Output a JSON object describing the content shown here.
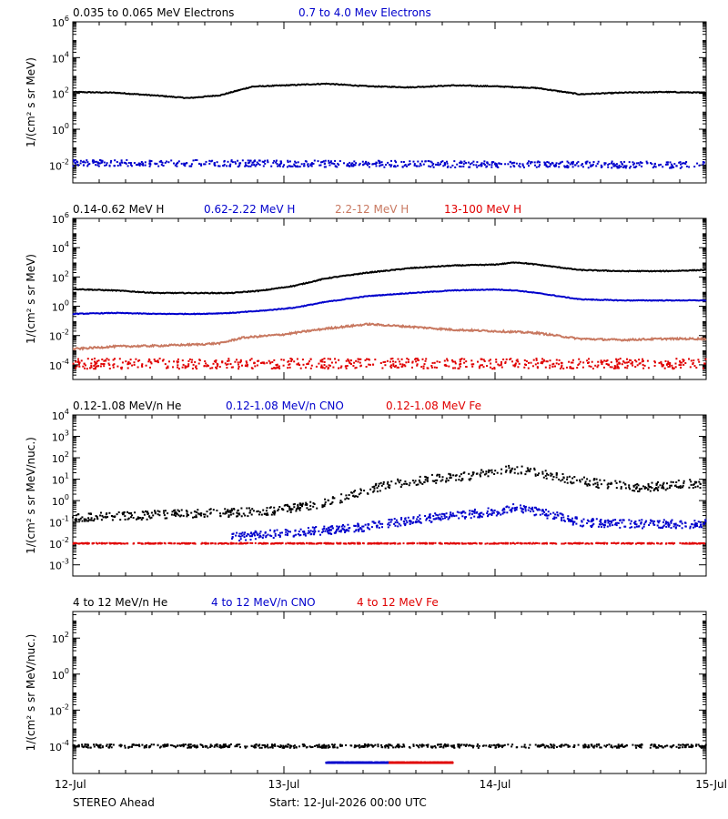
{
  "chart_data": [
    {
      "type": "scatter",
      "panel": 1,
      "ylabel": "1/(cm² s sr MeV)",
      "yscale": "log",
      "ylim": [
        0.001,
        1000000
      ],
      "yticks": [
        {
          "exp": "-2",
          "value": 0.01
        },
        {
          "exp": "0",
          "value": 1
        },
        {
          "exp": "2",
          "value": 100
        },
        {
          "exp": "4",
          "value": 10000
        },
        {
          "exp": "6",
          "value": 1000000
        }
      ],
      "series": [
        {
          "name": "0.035 to 0.065 MeV Electrons",
          "color": "#000000",
          "style": "line",
          "x": [
            0,
            0.2,
            0.4,
            0.55,
            0.7,
            0.85,
            1.0,
            1.2,
            1.4,
            1.6,
            1.8,
            2.0,
            2.2,
            2.4,
            2.6,
            2.8,
            3.0
          ],
          "y": [
            120,
            110,
            75,
            55,
            80,
            240,
            280,
            350,
            250,
            220,
            280,
            250,
            200,
            90,
            110,
            120,
            110
          ],
          "scatter": 0.05
        },
        {
          "name": "0.7 to 4.0 Mev Electrons",
          "color": "#0000cc",
          "style": "dots",
          "x": [
            0,
            3.0
          ],
          "y": [
            0.013,
            0.01
          ],
          "scatter": 0.18
        }
      ]
    },
    {
      "type": "scatter",
      "panel": 2,
      "ylabel": "1/(cm² s sr MeV)",
      "yscale": "log",
      "ylim": [
        1e-05,
        1000000
      ],
      "yticks": [
        {
          "exp": "-4",
          "value": 0.0001
        },
        {
          "exp": "-2",
          "value": 0.01
        },
        {
          "exp": "0",
          "value": 1
        },
        {
          "exp": "2",
          "value": 100
        },
        {
          "exp": "4",
          "value": 10000
        },
        {
          "exp": "6",
          "value": 1000000
        }
      ],
      "series": [
        {
          "name": "0.14-0.62 MeV H",
          "color": "#000000",
          "style": "line",
          "x": [
            0,
            0.2,
            0.4,
            0.6,
            0.75,
            0.9,
            1.05,
            1.2,
            1.4,
            1.6,
            1.8,
            2.0,
            2.1,
            2.2,
            2.4,
            2.6,
            2.8,
            3.0
          ],
          "y": [
            15,
            12,
            8,
            8,
            8,
            12,
            25,
            80,
            200,
            400,
            600,
            700,
            1000,
            700,
            300,
            250,
            250,
            300
          ],
          "scatter": 0.06
        },
        {
          "name": "0.62-2.22 MeV H",
          "color": "#0000cc",
          "style": "line",
          "x": [
            0,
            0.2,
            0.4,
            0.6,
            0.75,
            0.9,
            1.05,
            1.2,
            1.4,
            1.6,
            1.8,
            2.0,
            2.1,
            2.2,
            2.4,
            2.6,
            2.8,
            3.0
          ],
          "y": [
            0.3,
            0.35,
            0.3,
            0.3,
            0.35,
            0.5,
            0.8,
            2,
            5,
            8,
            12,
            14,
            12,
            8,
            3,
            2.5,
            2.5,
            2.5
          ],
          "scatter": 0.05
        },
        {
          "name": "2.2-12 MeV H",
          "color": "#c87860",
          "style": "line",
          "x": [
            0,
            0.2,
            0.4,
            0.6,
            0.7,
            0.8,
            1.0,
            1.2,
            1.4,
            1.6,
            1.8,
            2.0,
            2.2,
            2.4,
            2.6,
            2.8,
            3.0
          ],
          "y": [
            0.0012,
            0.0018,
            0.002,
            0.0025,
            0.003,
            0.007,
            0.012,
            0.03,
            0.06,
            0.04,
            0.025,
            0.02,
            0.015,
            0.006,
            0.005,
            0.006,
            0.006
          ],
          "scatter": 0.12
        },
        {
          "name": "13-100 MeV H",
          "color": "#e00000",
          "style": "dots",
          "x": [
            0,
            3.0
          ],
          "y": [
            0.00012,
            0.00012
          ],
          "scatter": 0.35
        }
      ]
    },
    {
      "type": "scatter",
      "panel": 3,
      "ylabel": "1/(cm² s sr MeV/nuc.)",
      "yscale": "log",
      "ylim": [
        0.0003,
        10000
      ],
      "yticks": [
        {
          "exp": "-3",
          "value": 0.001
        },
        {
          "exp": "-2",
          "value": 0.01
        },
        {
          "exp": "-1",
          "value": 0.1
        },
        {
          "exp": "0",
          "value": 1
        },
        {
          "exp": "1",
          "value": 10
        },
        {
          "exp": "2",
          "value": 100
        },
        {
          "exp": "3",
          "value": 1000
        },
        {
          "exp": "4",
          "value": 10000
        }
      ],
      "series": [
        {
          "name": "0.12-1.08 MeV/n He",
          "color": "#000000",
          "style": "dots",
          "x": [
            0,
            0.3,
            0.6,
            0.9,
            1.1,
            1.3,
            1.5,
            1.7,
            1.9,
            2.05,
            2.15,
            2.3,
            2.5,
            2.7,
            2.9,
            3.0
          ],
          "y": [
            0.15,
            0.2,
            0.25,
            0.3,
            0.5,
            1.5,
            6,
            10,
            15,
            30,
            25,
            12,
            6,
            4,
            6,
            6
          ],
          "scatter": 0.2
        },
        {
          "name": "0.12-1.08 MeV/n CNO",
          "color": "#0000cc",
          "style": "dots",
          "x": [
            0.75,
            1.0,
            1.2,
            1.4,
            1.6,
            1.8,
            2.0,
            2.1,
            2.2,
            2.4,
            2.6,
            2.8,
            3.0
          ],
          "y": [
            0.02,
            0.03,
            0.04,
            0.06,
            0.12,
            0.2,
            0.3,
            0.5,
            0.3,
            0.1,
            0.08,
            0.08,
            0.08
          ],
          "scatter": 0.2
        },
        {
          "name": "0.12-1.08 MeV Fe",
          "color": "#e00000",
          "style": "dots",
          "x": [
            0,
            3.0
          ],
          "y": [
            0.01,
            0.01
          ],
          "scatter": 0.02
        }
      ]
    },
    {
      "type": "scatter",
      "panel": 4,
      "ylabel": "1/(cm² s sr MeV/nuc.)",
      "yscale": "log",
      "ylim": [
        3e-06,
        3000
      ],
      "yticks": [
        {
          "exp": "-4",
          "value": 0.0001
        },
        {
          "exp": "-2",
          "value": 0.01
        },
        {
          "exp": "0",
          "value": 1
        },
        {
          "exp": "2",
          "value": 100
        }
      ],
      "series": [
        {
          "name": "4 to 12 MeV/n He",
          "color": "#000000",
          "style": "dots",
          "x": [
            0,
            3.0
          ],
          "y": [
            0.0001,
            0.0001
          ],
          "scatter": 0.1
        },
        {
          "name": "4 to 12 MeV/n CNO",
          "color": "#0000cc",
          "style": "dots",
          "x": [
            1.2,
            1.5
          ],
          "y": [
            1.2e-05,
            1.2e-05
          ],
          "scatter": 0.02
        },
        {
          "name": "4 to 12 MeV Fe",
          "color": "#e00000",
          "style": "dots",
          "x": [
            1.5,
            1.8
          ],
          "y": [
            1.2e-05,
            1.2e-05
          ],
          "scatter": 0.02
        }
      ]
    }
  ],
  "xaxis": {
    "xlim": [
      0,
      3
    ],
    "ticks": [
      {
        "label": "12-Jul",
        "value": 0
      },
      {
        "label": "13-Jul",
        "value": 1
      },
      {
        "label": "14-Jul",
        "value": 2
      },
      {
        "label": "15-Jul",
        "value": 3
      }
    ]
  },
  "footer": {
    "spacecraft": "STEREO Ahead",
    "start": "Start: 12-Jul-2026 00:00 UTC"
  }
}
